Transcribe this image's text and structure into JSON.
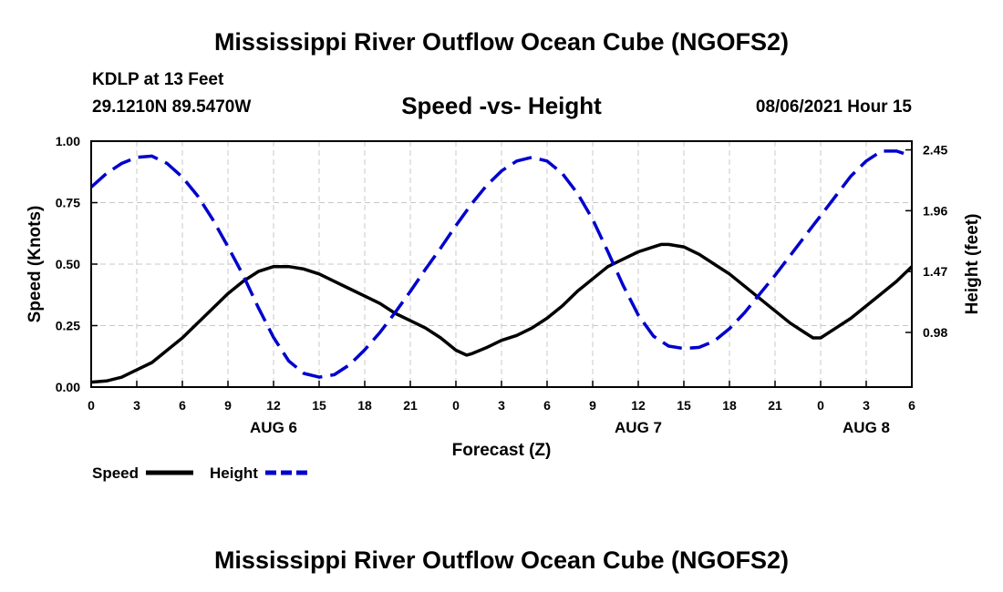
{
  "page": {
    "title_top": "Mississippi River Outflow Ocean Cube (NGOFS2)",
    "title_bottom": "Mississippi River Outflow Ocean Cube (NGOFS2)",
    "station": "KDLP at 13 Feet",
    "coords": "29.1210N  89.5470W",
    "subtitle": "Speed -vs- Height",
    "datetime": "08/06/2021 Hour 15"
  },
  "chart_data": {
    "type": "line",
    "title": "Speed -vs- Height",
    "xlabel": "Forecast (Z)",
    "ylabel": "Speed (Knots)",
    "y2label": "Height (feet)",
    "x_unit": "hours from 08/06/2021 00Z",
    "xlim": [
      0,
      54
    ],
    "ylim": [
      0,
      1.0
    ],
    "y2lim": [
      0.54,
      2.52
    ],
    "x_ticks": [
      0,
      3,
      6,
      9,
      12,
      15,
      18,
      21,
      24,
      27,
      30,
      33,
      36,
      39,
      42,
      45,
      48,
      51,
      54
    ],
    "x_tick_labels": [
      "0",
      "3",
      "6",
      "9",
      "12",
      "15",
      "18",
      "21",
      "0",
      "3",
      "6",
      "9",
      "12",
      "15",
      "18",
      "21",
      "0",
      "3",
      "6"
    ],
    "date_labels": [
      {
        "text": "AUG 6",
        "x": 12
      },
      {
        "text": "AUG 7",
        "x": 36
      },
      {
        "text": "AUG 8",
        "x": 51
      }
    ],
    "y_ticks": [
      0,
      0.25,
      0.5,
      0.75,
      1.0
    ],
    "y_tick_labels": [
      "0.00",
      "0.25",
      "0.50",
      "0.75",
      "1.00"
    ],
    "y2_ticks": [
      0.98,
      1.47,
      1.96,
      2.45
    ],
    "y2_tick_labels": [
      "0.98",
      "1.47",
      "1.96",
      "2.45"
    ],
    "grid": true,
    "series": [
      {
        "name": "Speed",
        "axis": "left",
        "color": "#000000",
        "dash": "solid",
        "x": [
          0,
          1,
          2,
          3,
          4,
          5,
          6,
          7,
          8,
          9,
          10,
          11,
          12,
          12.5,
          13,
          14,
          15,
          16,
          17,
          18,
          19,
          20,
          21,
          22,
          23,
          24,
          24.7,
          25,
          26,
          27,
          28,
          29,
          30,
          31,
          32,
          33,
          34,
          35,
          36,
          37,
          37.5,
          38,
          39,
          40,
          41,
          42,
          43,
          44,
          45,
          46,
          47,
          47.5,
          48,
          49,
          50,
          51,
          52,
          53,
          54
        ],
        "values": [
          0.02,
          0.025,
          0.04,
          0.07,
          0.1,
          0.15,
          0.2,
          0.26,
          0.32,
          0.38,
          0.43,
          0.47,
          0.49,
          0.49,
          0.49,
          0.48,
          0.46,
          0.43,
          0.4,
          0.37,
          0.34,
          0.3,
          0.27,
          0.24,
          0.2,
          0.15,
          0.13,
          0.135,
          0.16,
          0.19,
          0.21,
          0.24,
          0.28,
          0.33,
          0.39,
          0.44,
          0.49,
          0.52,
          0.55,
          0.57,
          0.58,
          0.58,
          0.57,
          0.54,
          0.5,
          0.46,
          0.41,
          0.36,
          0.31,
          0.26,
          0.22,
          0.2,
          0.2,
          0.24,
          0.28,
          0.33,
          0.38,
          0.43,
          0.49
        ]
      },
      {
        "name": "Height",
        "axis": "right",
        "color": "#0000cc",
        "dash": "dashed",
        "x": [
          0,
          1,
          2,
          3,
          4,
          5,
          6,
          7,
          8,
          9,
          10,
          11,
          12,
          13,
          14,
          15,
          16,
          17,
          18,
          19,
          20,
          21,
          22,
          23,
          24,
          25,
          26,
          27,
          28,
          29,
          30,
          31,
          32,
          33,
          34,
          35,
          36,
          37,
          38,
          39,
          40,
          41,
          42,
          43,
          44,
          45,
          46,
          47,
          48,
          49,
          50,
          51,
          52,
          53,
          54
        ],
        "values": [
          2.15,
          2.26,
          2.34,
          2.39,
          2.4,
          2.34,
          2.23,
          2.08,
          1.89,
          1.67,
          1.44,
          1.18,
          0.94,
          0.75,
          0.65,
          0.62,
          0.64,
          0.72,
          0.84,
          0.98,
          1.14,
          1.31,
          1.49,
          1.66,
          1.84,
          2.01,
          2.16,
          2.28,
          2.36,
          2.39,
          2.36,
          2.26,
          2.1,
          1.89,
          1.63,
          1.36,
          1.12,
          0.95,
          0.87,
          0.85,
          0.86,
          0.91,
          1.01,
          1.14,
          1.29,
          1.44,
          1.6,
          1.76,
          1.92,
          2.08,
          2.24,
          2.36,
          2.44,
          2.44,
          2.4
        ]
      }
    ],
    "legend": [
      {
        "label": "Speed",
        "color": "#000000",
        "dash": "solid"
      },
      {
        "label": "Height",
        "color": "#0000cc",
        "dash": "dashed"
      }
    ],
    "legend_position": "bottom-left"
  }
}
